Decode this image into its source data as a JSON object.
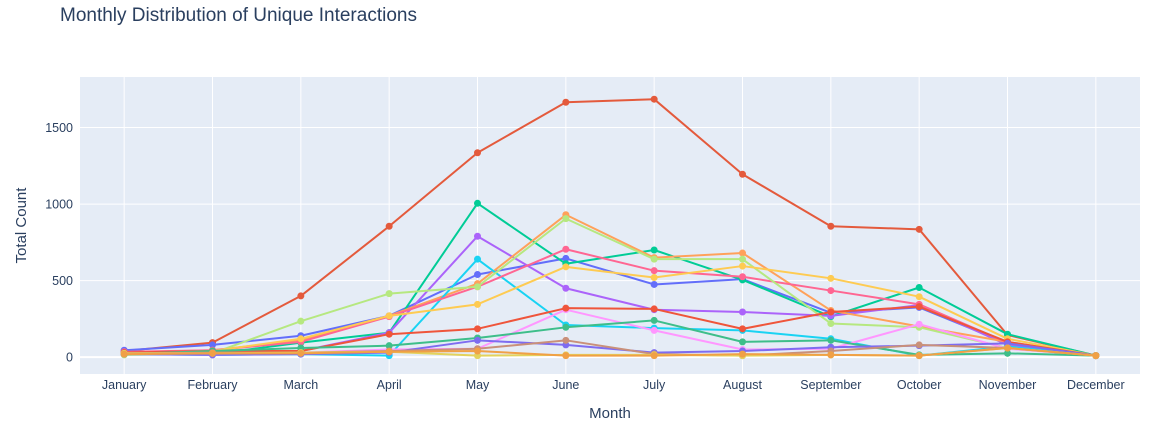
{
  "chart_data": {
    "type": "line",
    "title": "Monthly Distribution of Unique Interactions",
    "xlabel": "Month",
    "ylabel": "Total Count",
    "x": [
      "January",
      "February",
      "March",
      "April",
      "May",
      "June",
      "July",
      "August",
      "September",
      "October",
      "November",
      "December"
    ],
    "ylim": [
      -110,
      1830
    ],
    "yticks": [
      0,
      500,
      1000,
      1500
    ],
    "grid": true,
    "legend": "none",
    "series": [
      {
        "color": "#E45A3C",
        "values": [
          40,
          95,
          400,
          855,
          1335,
          1665,
          1685,
          1195,
          855,
          835,
          145,
          10
        ]
      },
      {
        "color": "#636EFA",
        "values": [
          45,
          80,
          140,
          270,
          540,
          645,
          475,
          510,
          290,
          325,
          90,
          10
        ]
      },
      {
        "color": "#00CC96",
        "values": [
          20,
          20,
          95,
          160,
          1005,
          610,
          700,
          505,
          265,
          455,
          150,
          10
        ]
      },
      {
        "color": "#AB63FA",
        "values": [
          30,
          20,
          40,
          160,
          790,
          450,
          310,
          295,
          270,
          340,
          80,
          10
        ]
      },
      {
        "color": "#FFA15A",
        "values": [
          30,
          45,
          110,
          270,
          480,
          930,
          650,
          680,
          305,
          200,
          100,
          10
        ]
      },
      {
        "color": "#19D3F3",
        "values": [
          20,
          15,
          20,
          10,
          640,
          210,
          190,
          175,
          120,
          10,
          70,
          10
        ]
      },
      {
        "color": "#FF6692",
        "values": [
          35,
          45,
          100,
          265,
          460,
          705,
          565,
          525,
          435,
          345,
          95,
          10
        ]
      },
      {
        "color": "#B6E880",
        "values": [
          15,
          25,
          235,
          415,
          460,
          905,
          640,
          640,
          220,
          195,
          60,
          10
        ]
      },
      {
        "color": "#FF97FF",
        "values": [
          25,
          15,
          30,
          50,
          55,
          310,
          175,
          50,
          55,
          215,
          55,
          10
        ]
      },
      {
        "color": "#FECB52",
        "values": [
          25,
          40,
          120,
          270,
          345,
          590,
          520,
          595,
          515,
          395,
          120,
          10
        ]
      },
      {
        "color": "#EF553B",
        "values": [
          30,
          40,
          40,
          150,
          185,
          320,
          315,
          185,
          295,
          330,
          100,
          10
        ]
      },
      {
        "color": "#3EBE8A",
        "values": [
          20,
          40,
          60,
          75,
          125,
          195,
          240,
          100,
          110,
          15,
          25,
          10
        ]
      },
      {
        "color": "#7E6CF0",
        "values": [
          20,
          15,
          20,
          30,
          110,
          80,
          30,
          40,
          65,
          75,
          90,
          10
        ]
      },
      {
        "color": "#C9907A",
        "values": [
          25,
          30,
          30,
          40,
          55,
          110,
          20,
          10,
          40,
          80,
          60,
          10
        ]
      },
      {
        "color": "#E3D35C",
        "values": [
          25,
          25,
          30,
          35,
          10,
          15,
          15,
          10,
          15,
          10,
          60,
          10
        ]
      },
      {
        "color": "#F0A046",
        "values": [
          20,
          25,
          25,
          35,
          40,
          10,
          10,
          20,
          15,
          10,
          60,
          10
        ]
      }
    ]
  }
}
